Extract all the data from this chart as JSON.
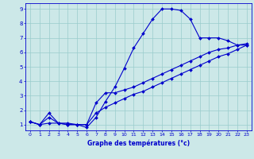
{
  "xlabel": "Graphe des températures (°c)",
  "bg_color": "#cce8e8",
  "grid_color": "#99cccc",
  "line_color": "#0000cc",
  "xmin": -0.5,
  "xmax": 23.5,
  "ymin": 0.6,
  "ymax": 9.4,
  "curve1_x": [
    0,
    1,
    2,
    3,
    4,
    5,
    6,
    7,
    8,
    9,
    10,
    11,
    12,
    13,
    14,
    15,
    16,
    17,
    18,
    19,
    20,
    21,
    22,
    23
  ],
  "curve1_y": [
    1.2,
    1.0,
    1.1,
    1.1,
    1.0,
    1.0,
    0.8,
    1.5,
    2.6,
    3.6,
    4.9,
    6.3,
    7.3,
    8.3,
    9.0,
    9.0,
    8.9,
    8.3,
    7.0,
    7.0,
    7.0,
    6.8,
    6.5,
    6.5
  ],
  "curve2_x": [
    0,
    1,
    2,
    3,
    4,
    5,
    6,
    7,
    8,
    9,
    10,
    11,
    12,
    13,
    14,
    15,
    16,
    17,
    18,
    19,
    20,
    21,
    22,
    23
  ],
  "curve2_y": [
    1.2,
    1.0,
    1.8,
    1.1,
    1.1,
    1.0,
    1.0,
    2.5,
    3.2,
    3.2,
    3.4,
    3.6,
    3.9,
    4.2,
    4.5,
    4.8,
    5.1,
    5.4,
    5.7,
    6.0,
    6.2,
    6.3,
    6.5,
    6.6
  ],
  "curve3_x": [
    0,
    1,
    2,
    3,
    4,
    5,
    6,
    7,
    8,
    9,
    10,
    11,
    12,
    13,
    14,
    15,
    16,
    17,
    18,
    19,
    20,
    21,
    22,
    23
  ],
  "curve3_y": [
    1.2,
    1.0,
    1.5,
    1.1,
    1.0,
    1.0,
    1.0,
    1.8,
    2.2,
    2.5,
    2.8,
    3.1,
    3.3,
    3.6,
    3.9,
    4.2,
    4.5,
    4.8,
    5.1,
    5.4,
    5.7,
    5.9,
    6.2,
    6.5
  ],
  "yticks": [
    1,
    2,
    3,
    4,
    5,
    6,
    7,
    8,
    9
  ],
  "xticks": [
    0,
    1,
    2,
    3,
    4,
    5,
    6,
    7,
    8,
    9,
    10,
    11,
    12,
    13,
    14,
    15,
    16,
    17,
    18,
    19,
    20,
    21,
    22,
    23
  ],
  "xlabel_fontsize": 5.5,
  "tick_fontsize": 4.5,
  "marker_size": 2.0,
  "line_width": 0.8
}
